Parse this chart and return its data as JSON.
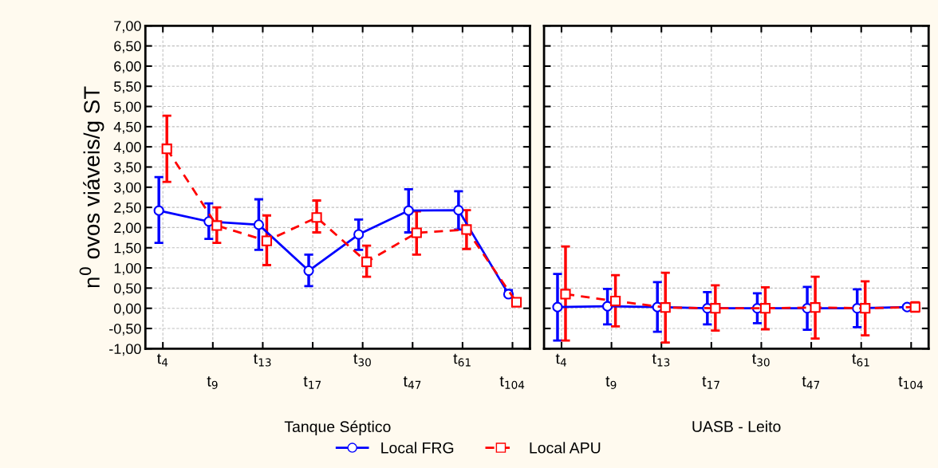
{
  "chart_data": [
    {
      "type": "line",
      "xlabel": "Tanque Séptico",
      "ylabel": "n$^{0}$ ovos viáveis/g ST",
      "categories": [
        "t$_{4}$",
        "t$_{9}$",
        "t$_{13}$",
        "t$_{17}$",
        "t$_{30}$",
        "t$_{47}$",
        "t$_{61}$",
        "t$_{104}$"
      ],
      "series": [
        {
          "name": "Local FRG",
          "color": "#0000ff",
          "marker": "circle",
          "line_style": "solid",
          "values": [
            2.42,
            2.15,
            2.07,
            0.93,
            1.83,
            2.42,
            2.43,
            0.35
          ],
          "errors": [
            [
              1.62,
              3.25
            ],
            [
              1.72,
              2.6
            ],
            [
              1.45,
              2.7
            ],
            [
              0.55,
              1.33
            ],
            [
              1.45,
              2.2
            ],
            [
              1.88,
              2.95
            ],
            [
              1.95,
              2.9
            ],
            [
              0.3,
              0.45
            ]
          ]
        },
        {
          "name": "Local APU",
          "color": "#ff0000",
          "marker": "square",
          "line_style": "dashed",
          "values": [
            3.95,
            2.05,
            1.67,
            2.25,
            1.15,
            1.87,
            1.95,
            0.15
          ],
          "errors": [
            [
              3.13,
              4.77
            ],
            [
              1.62,
              2.5
            ],
            [
              1.07,
              2.3
            ],
            [
              1.88,
              2.67
            ],
            [
              0.78,
              1.55
            ],
            [
              1.33,
              2.4
            ],
            [
              1.47,
              2.43
            ],
            [
              0.08,
              0.22
            ]
          ]
        }
      ],
      "ylim": [
        -1,
        7
      ],
      "yticks": [
        {
          "value": -1,
          "label": "-1,00"
        },
        {
          "value": -0.5,
          "label": "-0,50"
        },
        {
          "value": 0,
          "label": "0,00"
        },
        {
          "value": 0.5,
          "label": "0,50"
        },
        {
          "value": 1,
          "label": "1,00"
        },
        {
          "value": 1.5,
          "label": "1,50"
        },
        {
          "value": 2,
          "label": "2,00"
        },
        {
          "value": 2.5,
          "label": "2,50"
        },
        {
          "value": 3,
          "label": "3,00"
        },
        {
          "value": 3.5,
          "label": "3,50"
        },
        {
          "value": 4,
          "label": "4,00"
        },
        {
          "value": 4.5,
          "label": "4,50"
        },
        {
          "value": 5,
          "label": "5,00"
        },
        {
          "value": 5.5,
          "label": "5,50"
        },
        {
          "value": 6,
          "label": "6,00"
        },
        {
          "value": 6.5,
          "label": "6,50"
        },
        {
          "value": 7,
          "label": "7,00"
        }
      ],
      "grid": true,
      "legend": "bottom"
    },
    {
      "type": "line",
      "xlabel": "UASB - Leito",
      "categories": [
        "t$_{4}$",
        "t$_{9}$",
        "t$_{13}$",
        "t$_{17}$",
        "t$_{30}$",
        "t$_{47}$",
        "t$_{61}$",
        "t$_{104}$"
      ],
      "series": [
        {
          "color": "#0000ff",
          "marker": "circle",
          "line_style": "solid",
          "values": [
            0.03,
            0.05,
            0.03,
            0.0,
            0.0,
            0.0,
            0.0,
            0.03
          ],
          "errors": [
            [
              -0.8,
              0.85
            ],
            [
              -0.4,
              0.48
            ],
            [
              -0.58,
              0.65
            ],
            [
              -0.4,
              0.4
            ],
            [
              -0.37,
              0.37
            ],
            [
              -0.53,
              0.53
            ],
            [
              -0.47,
              0.47
            ],
            [
              -0.02,
              0.08
            ]
          ]
        },
        {
          "color": "#ff0000",
          "marker": "square",
          "line_style": "dashed",
          "values": [
            0.35,
            0.18,
            0.02,
            0.0,
            0.0,
            0.02,
            0.0,
            0.03
          ],
          "errors": [
            [
              -0.8,
              1.53
            ],
            [
              -0.45,
              0.82
            ],
            [
              -0.85,
              0.88
            ],
            [
              -0.55,
              0.57
            ],
            [
              -0.52,
              0.52
            ],
            [
              -0.75,
              0.78
            ],
            [
              -0.67,
              0.67
            ],
            [
              -0.08,
              0.15
            ]
          ]
        }
      ],
      "ylim": [
        -1,
        7
      ],
      "yticks": [
        {
          "value": -1,
          "label": null
        },
        {
          "value": -0.5,
          "label": null
        },
        {
          "value": 0,
          "label": null
        },
        {
          "value": 0.5,
          "label": null
        },
        {
          "value": 1,
          "label": null
        },
        {
          "value": 1.5,
          "label": null
        },
        {
          "value": 2,
          "label": null
        },
        {
          "value": 2.5,
          "label": null
        },
        {
          "value": 3,
          "label": null
        },
        {
          "value": 3.5,
          "label": null
        },
        {
          "value": 4,
          "label": null
        },
        {
          "value": 4.5,
          "label": null
        },
        {
          "value": 5,
          "label": null
        },
        {
          "value": 5.5,
          "label": null
        },
        {
          "value": 6,
          "label": null
        },
        {
          "value": 6.5,
          "label": null
        },
        {
          "value": 7,
          "label": null
        }
      ],
      "tick_labels": "x",
      "grid": true
    }
  ]
}
